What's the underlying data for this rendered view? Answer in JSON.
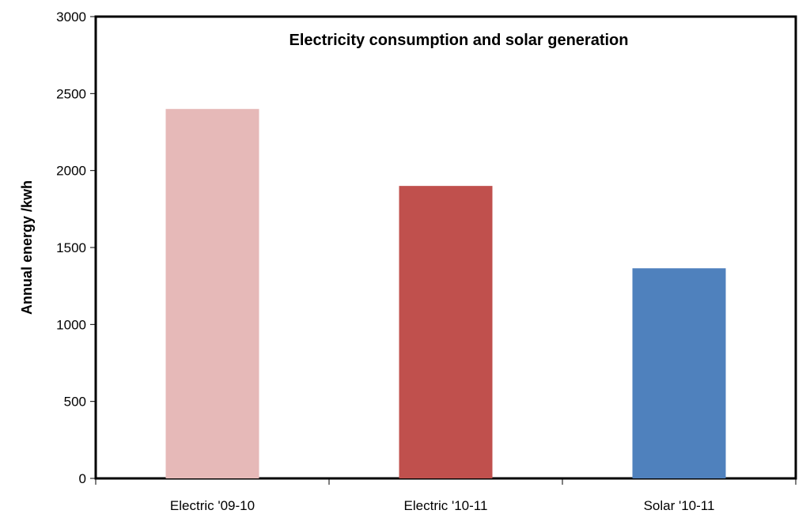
{
  "chart_data": {
    "type": "bar",
    "title": "Electricity consumption and solar generation",
    "xlabel": "",
    "ylabel": "Annual energy /kwh",
    "categories": [
      "Electric '09-10",
      "Electric '10-11",
      "Solar '10-11"
    ],
    "values": [
      2400,
      1900,
      1365
    ],
    "ylim": [
      0,
      3000
    ],
    "yticks": [
      "0",
      "500",
      "1000",
      "1500",
      "2000",
      "2500",
      "3000"
    ],
    "grid": false,
    "legend": "none",
    "bar_colors": [
      "#e6b9b8",
      "#c0504d",
      "#4f81bd"
    ]
  }
}
